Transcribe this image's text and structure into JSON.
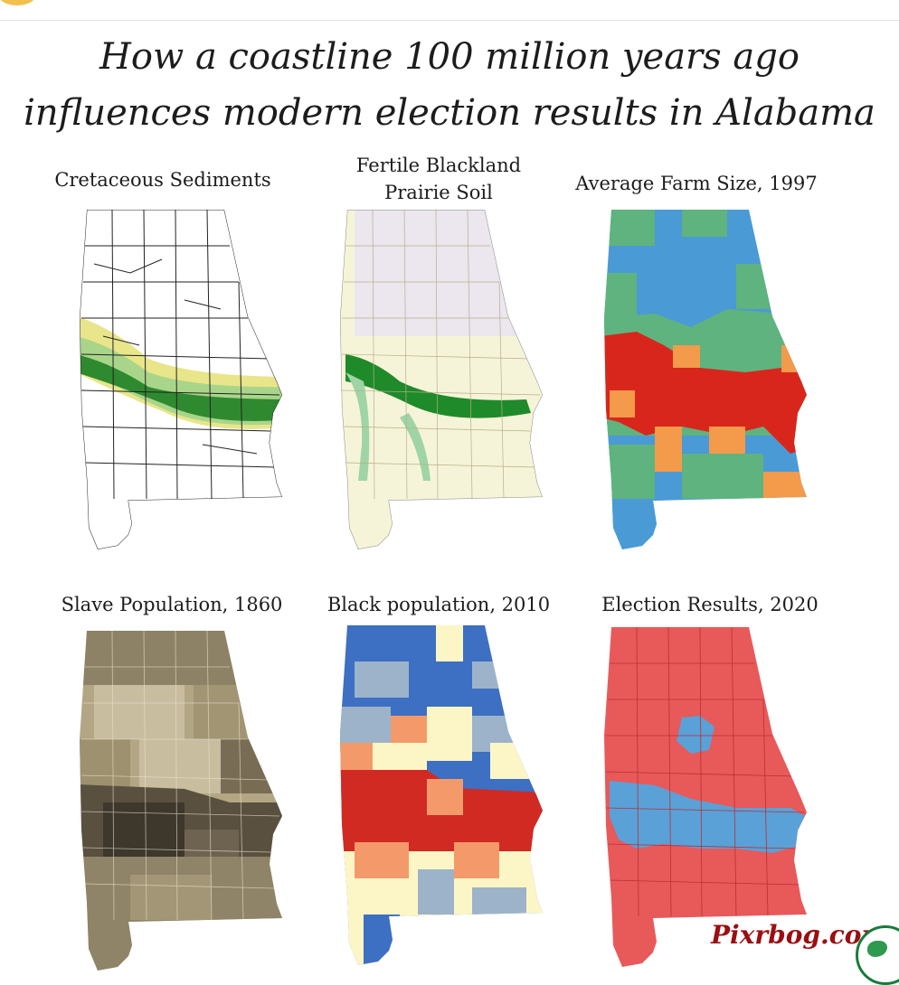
{
  "title": {
    "line1": "How a coastline 100 million years ago",
    "line2": "influences modern election results in Alabama"
  },
  "panels": [
    {
      "label": "Cretaceous Sediments"
    },
    {
      "label_line1": "Fertile Blackland",
      "label_line2": "Prairie Soil"
    },
    {
      "label": "Average Farm Size, 1997"
    },
    {
      "label": "Slave Population, 1860"
    },
    {
      "label": "Black population, 2010"
    },
    {
      "label": "Election Results, 2020"
    }
  ],
  "watermark": "Pixrbog.com",
  "colors": {
    "sediment_dark": "#2f8a2f",
    "sediment_light": "#a9d58a",
    "sediment_yellow": "#e9e58a",
    "prairie_green": "#1f8a2a",
    "prairie_bg": "#f6f4d8",
    "farm_blue": "#4a9ad6",
    "farm_green": "#5fb37e",
    "farm_orange": "#f39a4b",
    "farm_red": "#d9261c",
    "slave_dark": "#3e372c",
    "slave_light": "#c9bda0",
    "blackpop_blue": "#3d6fc2",
    "blackpop_cream": "#fcf6c6",
    "blackpop_red": "#d12a22",
    "election_red": "#e8595a",
    "election_blue": "#5aa1d8"
  }
}
